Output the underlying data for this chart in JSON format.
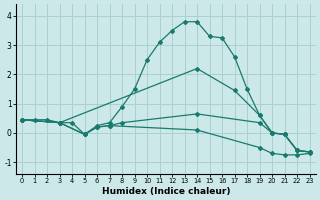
{
  "xlabel": "Humidex (Indice chaleur)",
  "ylabel": "",
  "background_color": "#cce8e8",
  "grid_color": "#aad0d0",
  "line_color": "#1a7a6e",
  "xlim": [
    -0.5,
    23.5
  ],
  "ylim": [
    -1.4,
    4.4
  ],
  "xticks": [
    0,
    1,
    2,
    3,
    4,
    5,
    6,
    7,
    8,
    9,
    10,
    11,
    12,
    13,
    14,
    15,
    16,
    17,
    18,
    19,
    20,
    21,
    22,
    23
  ],
  "yticks": [
    -1,
    0,
    1,
    2,
    3,
    4
  ],
  "lines": [
    {
      "x": [
        0,
        1,
        2,
        3,
        4,
        5,
        6,
        7,
        8,
        9,
        10,
        11,
        12,
        13,
        14,
        15,
        16,
        17,
        18,
        19,
        20,
        21,
        22,
        23
      ],
      "y": [
        0.45,
        0.45,
        0.45,
        0.35,
        0.35,
        -0.05,
        0.25,
        0.35,
        0.9,
        1.5,
        2.5,
        3.1,
        3.5,
        3.8,
        3.8,
        3.3,
        3.25,
        2.6,
        1.5,
        0.6,
        0.0,
        -0.05,
        -0.6,
        -0.65
      ]
    },
    {
      "x": [
        0,
        3,
        14,
        17,
        19,
        20,
        21,
        22,
        23
      ],
      "y": [
        0.45,
        0.35,
        2.2,
        1.45,
        0.6,
        0.0,
        -0.05,
        -0.6,
        -0.65
      ]
    },
    {
      "x": [
        0,
        3,
        5,
        6,
        7,
        8,
        14,
        19,
        20,
        21,
        22,
        23
      ],
      "y": [
        0.45,
        0.35,
        -0.05,
        0.2,
        0.25,
        0.35,
        0.65,
        0.35,
        0.0,
        -0.05,
        -0.6,
        -0.65
      ]
    },
    {
      "x": [
        0,
        3,
        5,
        6,
        7,
        14,
        19,
        20,
        21,
        22,
        23
      ],
      "y": [
        0.45,
        0.35,
        -0.05,
        0.2,
        0.25,
        0.1,
        -0.5,
        -0.7,
        -0.75,
        -0.75,
        -0.7
      ]
    }
  ]
}
